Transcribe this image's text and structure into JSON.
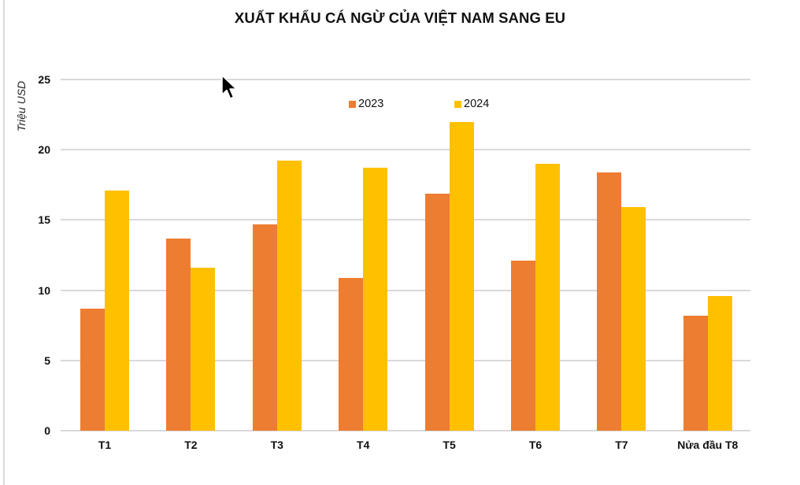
{
  "chart_data": {
    "type": "bar",
    "title": "XUẤT KHẨU CÁ NGỪ CỦA VIỆT NAM SANG EU",
    "xlabel": "",
    "ylabel": "Triệu USD",
    "ylim": [
      0,
      25
    ],
    "yticks": [
      0,
      5,
      10,
      15,
      20,
      25
    ],
    "grid": true,
    "legend_position": "top-inside",
    "categories": [
      "T1",
      "T2",
      "T3",
      "T4",
      "T5",
      "T6",
      "T7",
      "Nửa đầu T8"
    ],
    "series": [
      {
        "name": "2023",
        "color": "#ed7d31",
        "values": [
          8.7,
          13.7,
          14.7,
          10.9,
          16.9,
          12.1,
          18.4,
          8.2
        ]
      },
      {
        "name": "2024",
        "color": "#ffc000",
        "values": [
          17.1,
          11.6,
          19.2,
          18.7,
          22.0,
          19.0,
          15.9,
          9.6
        ]
      }
    ]
  },
  "legend": {
    "items": [
      "2023",
      "2024"
    ]
  }
}
